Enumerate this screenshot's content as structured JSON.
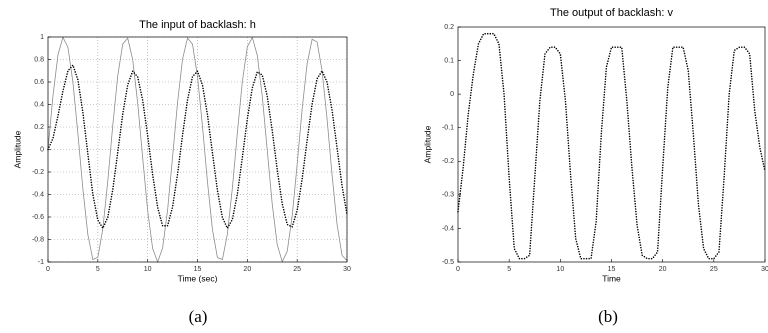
{
  "chart_data": [
    {
      "type": "line",
      "title": "The input of backlash: h",
      "xlabel": "Time (sec)",
      "ylabel": "Amplitude",
      "caption": "(a)",
      "xlim": [
        0,
        30
      ],
      "xticks": [
        0,
        5,
        10,
        15,
        20,
        25,
        30
      ],
      "ylim": [
        -1,
        1
      ],
      "yticks": [
        -1,
        -0.8,
        -0.6,
        -0.4,
        -0.2,
        0,
        0.2,
        0.4,
        0.6,
        0.8,
        1
      ],
      "grid": true,
      "x": [
        0,
        0.5,
        1,
        1.5,
        2,
        2.5,
        3,
        3.5,
        4,
        4.5,
        5,
        5.5,
        6,
        6.5,
        7,
        7.5,
        8,
        8.5,
        9,
        9.5,
        10,
        10.5,
        11,
        11.5,
        12,
        12.5,
        13,
        13.5,
        14,
        14.5,
        15,
        15.5,
        16,
        16.5,
        17,
        17.5,
        18,
        18.5,
        19,
        19.5,
        20,
        20.5,
        21,
        21.5,
        22,
        22.5,
        23,
        23.5,
        24,
        24.5,
        25,
        25.5,
        26,
        26.5,
        27,
        27.5,
        28,
        28.5,
        29,
        29.5,
        30
      ],
      "series": [
        {
          "color": "#8c8c8c",
          "style": "solid",
          "values": [
            0,
            0.479,
            0.841,
            0.997,
            0.909,
            0.598,
            0.141,
            -0.351,
            -0.757,
            -0.978,
            -0.959,
            -0.706,
            -0.279,
            0.215,
            0.657,
            0.938,
            0.989,
            0.798,
            0.412,
            -0.075,
            -0.544,
            -0.88,
            -1,
            -0.875,
            -0.537,
            -0.066,
            0.42,
            0.804,
            0.991,
            0.935,
            0.65,
            0.207,
            -0.288,
            -0.712,
            -0.961,
            -0.978,
            -0.751,
            -0.342,
            0.15,
            0.605,
            0.913,
            0.996,
            0.837,
            0.471,
            -0.009,
            -0.487,
            -0.846,
            -0.997,
            -0.906,
            -0.591,
            -0.132,
            0.36,
            0.763,
            0.98,
            0.956,
            0.699,
            0.271,
            -0.224,
            -0.664,
            -0.941,
            -0.988
          ]
        },
        {
          "color": "#000000",
          "style": "dotted",
          "values": [
            0,
            0.1,
            0.3,
            0.52,
            0.7,
            0.75,
            0.62,
            0.33,
            -0.04,
            -0.4,
            -0.627,
            -0.699,
            -0.601,
            -0.357,
            -0.023,
            0.315,
            0.576,
            0.696,
            0.645,
            0.438,
            0.122,
            -0.223,
            -0.513,
            -0.679,
            -0.677,
            -0.51,
            -0.218,
            0.128,
            0.442,
            0.648,
            0.696,
            0.573,
            0.309,
            -0.03,
            -0.363,
            -0.606,
            -0.699,
            -0.622,
            -0.396,
            -0.07,
            0.272,
            0.548,
            0.69,
            0.662,
            0.473,
            0.167,
            -0.179,
            -0.482,
            -0.666,
            -0.688,
            -0.541,
            -0.262,
            0.082,
            0.405,
            0.629,
            0.699,
            0.598,
            0.35,
            0.017,
            -0.321,
            -0.579
          ]
        }
      ]
    },
    {
      "type": "line",
      "title": "The output of backlash: v",
      "xlabel": "Time",
      "ylabel": "Amplitude",
      "caption": "(b)",
      "xlim": [
        0,
        30
      ],
      "xticks": [
        0,
        5,
        10,
        15,
        20,
        25,
        30
      ],
      "ylim": [
        -0.5,
        0.2
      ],
      "yticks": [
        -0.5,
        -0.4,
        -0.3,
        -0.2,
        -0.1,
        0,
        0.1,
        0.2
      ],
      "grid": false,
      "x": [
        0,
        0.5,
        1,
        1.5,
        2,
        2.5,
        3,
        3.5,
        4,
        4.5,
        5,
        5.5,
        6,
        6.5,
        7,
        7.5,
        8,
        8.5,
        9,
        9.5,
        10,
        10.5,
        11,
        11.5,
        12,
        12.5,
        13,
        13.5,
        14,
        14.5,
        15,
        15.5,
        16,
        16.5,
        17,
        17.5,
        18,
        18.5,
        19,
        19.5,
        20,
        20.5,
        21,
        21.5,
        22,
        22.5,
        23,
        23.5,
        24,
        24.5,
        25,
        25.5,
        26,
        26.5,
        27,
        27.5,
        28,
        28.5,
        29,
        29.5,
        30
      ],
      "series": [
        {
          "color": "#000000",
          "style": "dotted",
          "values": [
            -0.35,
            -0.22,
            -0.06,
            0.06,
            0.15,
            0.18,
            0.18,
            0.18,
            0.15,
            0,
            -0.25,
            -0.46,
            -0.49,
            -0.49,
            -0.48,
            -0.25,
            -0.02,
            0.12,
            0.14,
            0.14,
            0.12,
            -0.02,
            -0.24,
            -0.43,
            -0.49,
            -0.49,
            -0.49,
            -0.38,
            -0.12,
            0.08,
            0.14,
            0.14,
            0.14,
            -0.02,
            -0.22,
            -0.39,
            -0.48,
            -0.49,
            -0.49,
            -0.47,
            -0.22,
            0.02,
            0.14,
            0.14,
            0.14,
            0.07,
            -0.12,
            -0.33,
            -0.46,
            -0.49,
            -0.49,
            -0.47,
            -0.25,
            0,
            0.13,
            0.14,
            0.14,
            0.12,
            -0.05,
            -0.16,
            -0.23
          ]
        }
      ]
    }
  ]
}
